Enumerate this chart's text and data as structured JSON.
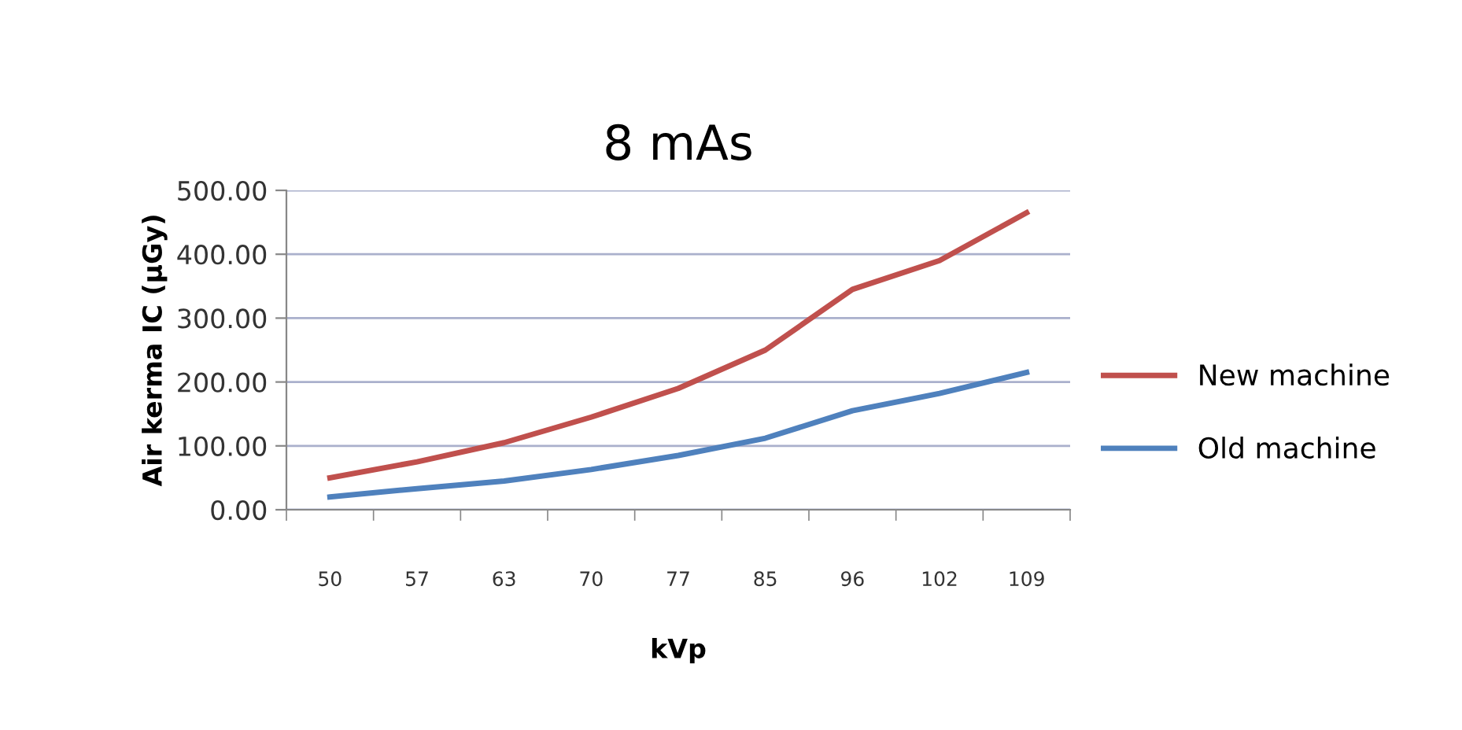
{
  "chart_data": {
    "type": "line",
    "title": "8 mAs",
    "xlabel": "kVp",
    "ylabel": "Air kerma IC (µGy)",
    "categories": [
      "50",
      "57",
      "63",
      "70",
      "77",
      "85",
      "96",
      "102",
      "109"
    ],
    "series": [
      {
        "name": "New machine",
        "color": "#c0504d",
        "values": [
          50,
          75,
          105,
          145,
          190,
          250,
          345,
          390,
          465
        ]
      },
      {
        "name": "Old machine",
        "color": "#4f81bd",
        "values": [
          20,
          33,
          45,
          63,
          85,
          112,
          155,
          182,
          215
        ]
      }
    ],
    "ylim": [
      0,
      500
    ],
    "yticks": [
      {
        "value": 0,
        "label": "0.00"
      },
      {
        "value": 100,
        "label": "100.00"
      },
      {
        "value": 200,
        "label": "200.00"
      },
      {
        "value": 300,
        "label": "300.00"
      },
      {
        "value": 400,
        "label": "400.00"
      },
      {
        "value": 500,
        "label": "500.00"
      }
    ],
    "grid": "y",
    "legend": "right",
    "marker": "none",
    "line_style": "solid"
  }
}
